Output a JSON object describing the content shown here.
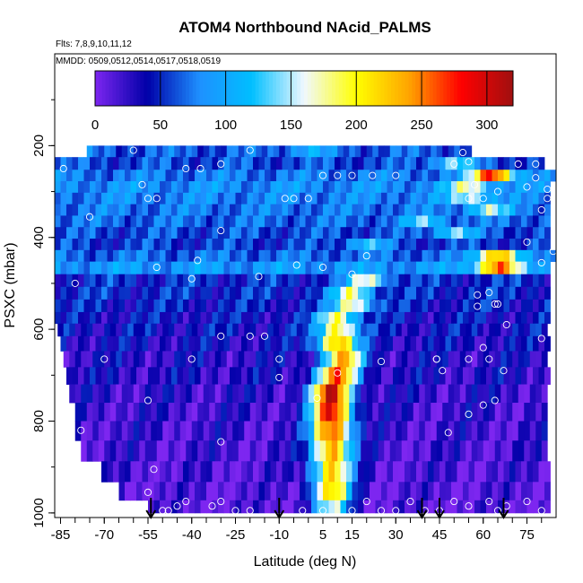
{
  "chart_data": {
    "type": "heatmap",
    "title": "ATOM4 Northbound NAcid_PALMS",
    "flights_note": "Flts: 7,8,9,10,11,12",
    "dates_note": "MMDD: 0509,0512,0514,0517,0518,0519",
    "xlabel": "Latitude (deg N)",
    "ylabel": "PSXC (mbar)",
    "xlim": [
      -87,
      85
    ],
    "ylim": [
      1010,
      0
    ],
    "x_ticks": [
      -85,
      -70,
      -55,
      -40,
      -25,
      -10,
      5,
      15,
      30,
      45,
      60,
      75
    ],
    "y_ticks": [
      200,
      400,
      600,
      800,
      1000
    ],
    "colorbar": {
      "range": [
        0,
        320
      ],
      "ticks": [
        0,
        50,
        100,
        150,
        200,
        250,
        300
      ],
      "colors": [
        "#7d26f0",
        "#0000a8",
        "#1e90ff",
        "#00bfff",
        "#f0f8ff",
        "#ffff00",
        "#ffa500",
        "#ff0000",
        "#a01010"
      ]
    },
    "pressure_bands": [
      {
        "p": 210,
        "lat_min": -76,
        "lat_max": 56,
        "peak_lat": 0,
        "peak": 105,
        "base": 65
      },
      {
        "p": 240,
        "lat_min": -87,
        "lat_max": 80,
        "peak_lat": 50,
        "peak": 140,
        "base": 60
      },
      {
        "p": 265,
        "lat_min": -87,
        "lat_max": 84,
        "peak_lat": 63,
        "peak": 285,
        "base": 75
      },
      {
        "p": 290,
        "lat_min": -87,
        "lat_max": 82,
        "peak_lat": 55,
        "peak": 175,
        "base": 85
      },
      {
        "p": 315,
        "lat_min": -87,
        "lat_max": 82,
        "peak_lat": 55,
        "peak": 160,
        "base": 80
      },
      {
        "p": 340,
        "lat_min": -87,
        "lat_max": 82,
        "peak_lat": 62,
        "peak": 150,
        "base": 75
      },
      {
        "p": 365,
        "lat_min": -87,
        "lat_max": 82,
        "peak_lat": 40,
        "peak": 130,
        "base": 70
      },
      {
        "p": 390,
        "lat_min": -87,
        "lat_max": 82,
        "peak_lat": 50,
        "peak": 140,
        "base": 60
      },
      {
        "p": 415,
        "lat_min": -87,
        "lat_max": 82,
        "peak_lat": 20,
        "peak": 120,
        "base": 55
      },
      {
        "p": 440,
        "lat_min": -87,
        "lat_max": 84,
        "peak_lat": 65,
        "peak": 240,
        "base": 70
      },
      {
        "p": 465,
        "lat_min": -87,
        "lat_max": 82,
        "peak_lat": 65,
        "peak": 260,
        "base": 90
      },
      {
        "p": 495,
        "lat_min": -87,
        "lat_max": 82,
        "peak_lat": 20,
        "peak": 170,
        "base": 50
      },
      {
        "p": 520,
        "lat_min": -87,
        "lat_max": 82,
        "peak_lat": 15,
        "peak": 175,
        "base": 50
      },
      {
        "p": 550,
        "lat_min": -87,
        "lat_max": 82,
        "peak_lat": 15,
        "peak": 185,
        "base": 45
      },
      {
        "p": 575,
        "lat_min": -87,
        "lat_max": 82,
        "peak_lat": 10,
        "peak": 190,
        "base": 40
      },
      {
        "p": 600,
        "lat_min": -86,
        "lat_max": 82,
        "peak_lat": 10,
        "peak": 205,
        "base": 40
      },
      {
        "p": 630,
        "lat_min": -85,
        "lat_max": 82,
        "peak_lat": 10,
        "peak": 230,
        "base": 35
      },
      {
        "p": 665,
        "lat_min": -84,
        "lat_max": 82,
        "peak_lat": 12,
        "peak": 225,
        "base": 30
      },
      {
        "p": 700,
        "lat_min": -83,
        "lat_max": 82,
        "peak_lat": 10,
        "peak": 255,
        "base": 30
      },
      {
        "p": 740,
        "lat_min": -82,
        "lat_max": 82,
        "peak_lat": 8,
        "peak": 295,
        "base": 25
      },
      {
        "p": 780,
        "lat_min": -80,
        "lat_max": 82,
        "peak_lat": 8,
        "peak": 290,
        "base": 22
      },
      {
        "p": 820,
        "lat_min": -80,
        "lat_max": 82,
        "peak_lat": 8,
        "peak": 270,
        "base": 20
      },
      {
        "p": 865,
        "lat_min": -78,
        "lat_max": 82,
        "peak_lat": 8,
        "peak": 240,
        "base": 18
      },
      {
        "p": 910,
        "lat_min": -71,
        "lat_max": 82,
        "peak_lat": 8,
        "peak": 220,
        "base": 15
      },
      {
        "p": 955,
        "lat_min": -65,
        "lat_max": 82,
        "peak_lat": 8,
        "peak": 210,
        "base": 12
      },
      {
        "p": 990,
        "lat_min": -55,
        "lat_max": 82,
        "peak_lat": 8,
        "peak": 150,
        "base": 10
      }
    ],
    "points": [
      [
        -86,
        215
      ],
      [
        -84,
        250
      ],
      [
        -60,
        210
      ],
      [
        -20,
        210
      ],
      [
        -30,
        240
      ],
      [
        -75,
        355
      ],
      [
        -55,
        315
      ],
      [
        -52,
        315
      ],
      [
        -30,
        385
      ],
      [
        -42,
        250
      ],
      [
        -37,
        250
      ],
      [
        -8,
        315
      ],
      [
        -5,
        315
      ],
      [
        0,
        315
      ],
      [
        5,
        265
      ],
      [
        10,
        265
      ],
      [
        15,
        265
      ],
      [
        22,
        265
      ],
      [
        30,
        265
      ],
      [
        -52,
        465
      ],
      [
        -38,
        450
      ],
      [
        -17,
        485
      ],
      [
        -4,
        460
      ],
      [
        5,
        465
      ],
      [
        15,
        480
      ],
      [
        20,
        440
      ],
      [
        -80,
        500
      ],
      [
        -40,
        490
      ],
      [
        -70,
        665
      ],
      [
        -40,
        665
      ],
      [
        -10,
        665
      ],
      [
        -20,
        615
      ],
      [
        -87,
        620
      ],
      [
        -30,
        615
      ],
      [
        3,
        750
      ],
      [
        10,
        695
      ],
      [
        25,
        670
      ],
      [
        44,
        665
      ],
      [
        46,
        690
      ],
      [
        55,
        665
      ],
      [
        62,
        665
      ],
      [
        60,
        640
      ],
      [
        67,
        690
      ],
      [
        62,
        520
      ],
      [
        64,
        545
      ],
      [
        58,
        525
      ],
      [
        58,
        550
      ],
      [
        68,
        590
      ],
      [
        55,
        315
      ],
      [
        57,
        285
      ],
      [
        60,
        315
      ],
      [
        65,
        300
      ],
      [
        75,
        290
      ],
      [
        78,
        270
      ],
      [
        82,
        295
      ],
      [
        82,
        315
      ],
      [
        80,
        340
      ],
      [
        84,
        430
      ],
      [
        80,
        455
      ],
      [
        75,
        410
      ],
      [
        80,
        620
      ],
      [
        -78,
        820
      ],
      [
        -30,
        845
      ],
      [
        -53,
        905
      ],
      [
        -55,
        955
      ],
      [
        -50,
        995
      ],
      [
        -45,
        985
      ],
      [
        -42,
        975
      ],
      [
        -30,
        975
      ],
      [
        -25,
        995
      ],
      [
        -20,
        995
      ],
      [
        -2,
        995
      ],
      [
        5,
        995
      ],
      [
        15,
        995
      ],
      [
        20,
        975
      ],
      [
        25,
        995
      ],
      [
        30,
        995
      ],
      [
        35,
        975
      ],
      [
        40,
        995
      ],
      [
        45,
        995
      ],
      [
        50,
        975
      ],
      [
        55,
        985
      ],
      [
        62,
        975
      ],
      [
        65,
        995
      ],
      [
        68,
        985
      ],
      [
        75,
        975
      ],
      [
        80,
        995
      ],
      [
        -55,
        755
      ],
      [
        -48,
        995
      ],
      [
        -33,
        985
      ],
      [
        48,
        825
      ],
      [
        55,
        785
      ],
      [
        60,
        765
      ],
      [
        64,
        755
      ],
      [
        50,
        240
      ],
      [
        55,
        235
      ],
      [
        53,
        215
      ],
      [
        72,
        240
      ],
      [
        78,
        240
      ],
      [
        -57,
        285
      ],
      [
        -10,
        705
      ],
      [
        -15,
        615
      ],
      [
        44,
        665
      ],
      [
        65,
        545
      ]
    ],
    "arrows_lat": [
      -54,
      -10,
      39,
      45,
      67
    ]
  }
}
